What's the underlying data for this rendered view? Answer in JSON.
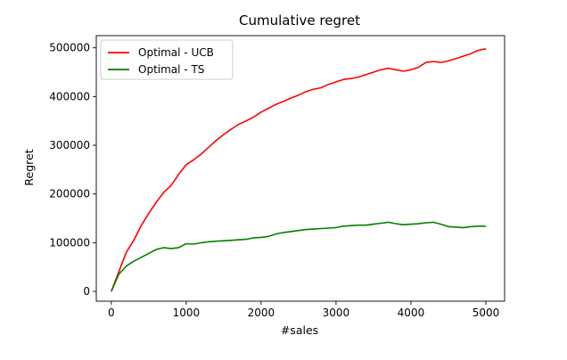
{
  "chart_data": {
    "type": "line",
    "title": "Cumulative regret",
    "xlabel": "#sales",
    "ylabel": "Regret",
    "xlim": [
      -200,
      5250
    ],
    "ylim": [
      -20000,
      525000
    ],
    "xticks": [
      0,
      1000,
      2000,
      3000,
      4000,
      5000
    ],
    "xtick_labels": [
      "0",
      "1000",
      "2000",
      "3000",
      "4000",
      "5000"
    ],
    "yticks": [
      0,
      100000,
      200000,
      300000,
      400000,
      500000
    ],
    "ytick_labels": [
      "0",
      "100000",
      "200000",
      "300000",
      "400000",
      "500000"
    ],
    "grid": false,
    "legend_position": "top-left",
    "series": [
      {
        "name": "Optimal - UCB",
        "color": "#ff0000",
        "x": [
          0,
          100,
          200,
          300,
          400,
          500,
          600,
          700,
          800,
          900,
          1000,
          1100,
          1200,
          1300,
          1400,
          1500,
          1600,
          1700,
          1800,
          1900,
          2000,
          2100,
          2200,
          2300,
          2400,
          2500,
          2600,
          2700,
          2800,
          2900,
          3000,
          3100,
          3200,
          3300,
          3400,
          3500,
          3600,
          3700,
          3800,
          3900,
          4000,
          4100,
          4200,
          4300,
          4400,
          4500,
          4600,
          4700,
          4800,
          4900,
          5000
        ],
        "y": [
          0,
          40000,
          80000,
          105000,
          135000,
          160000,
          183000,
          203000,
          218000,
          240000,
          260000,
          270000,
          282000,
          296000,
          310000,
          322000,
          333000,
          343000,
          350000,
          358000,
          368000,
          376000,
          384000,
          390000,
          397000,
          403000,
          410000,
          415000,
          418000,
          425000,
          430000,
          435000,
          437000,
          440000,
          445000,
          450000,
          455000,
          458000,
          455000,
          452000,
          455000,
          460000,
          470000,
          472000,
          470000,
          473000,
          478000,
          483000,
          488000,
          495000,
          498000
        ]
      },
      {
        "name": "Optimal - TS",
        "color": "#008000",
        "x": [
          0,
          100,
          200,
          300,
          400,
          500,
          600,
          700,
          800,
          900,
          1000,
          1100,
          1200,
          1300,
          1400,
          1500,
          1600,
          1700,
          1800,
          1900,
          2000,
          2100,
          2200,
          2300,
          2400,
          2500,
          2600,
          2700,
          2800,
          2900,
          3000,
          3100,
          3200,
          3300,
          3400,
          3500,
          3600,
          3700,
          3800,
          3900,
          4000,
          4100,
          4200,
          4300,
          4400,
          4500,
          4600,
          4700,
          4800,
          4900,
          5000
        ],
        "y": [
          0,
          35000,
          52000,
          62000,
          70000,
          78000,
          86000,
          90000,
          88000,
          90000,
          98000,
          97000,
          100000,
          102000,
          103000,
          104000,
          105000,
          106000,
          107000,
          110000,
          111000,
          113000,
          118000,
          121000,
          123000,
          125000,
          127000,
          128000,
          129000,
          130000,
          131000,
          134000,
          135000,
          136000,
          136000,
          138000,
          140000,
          142000,
          139000,
          137000,
          138000,
          139000,
          141000,
          142000,
          138000,
          133000,
          132000,
          131000,
          133000,
          134000,
          134000
        ]
      }
    ]
  }
}
